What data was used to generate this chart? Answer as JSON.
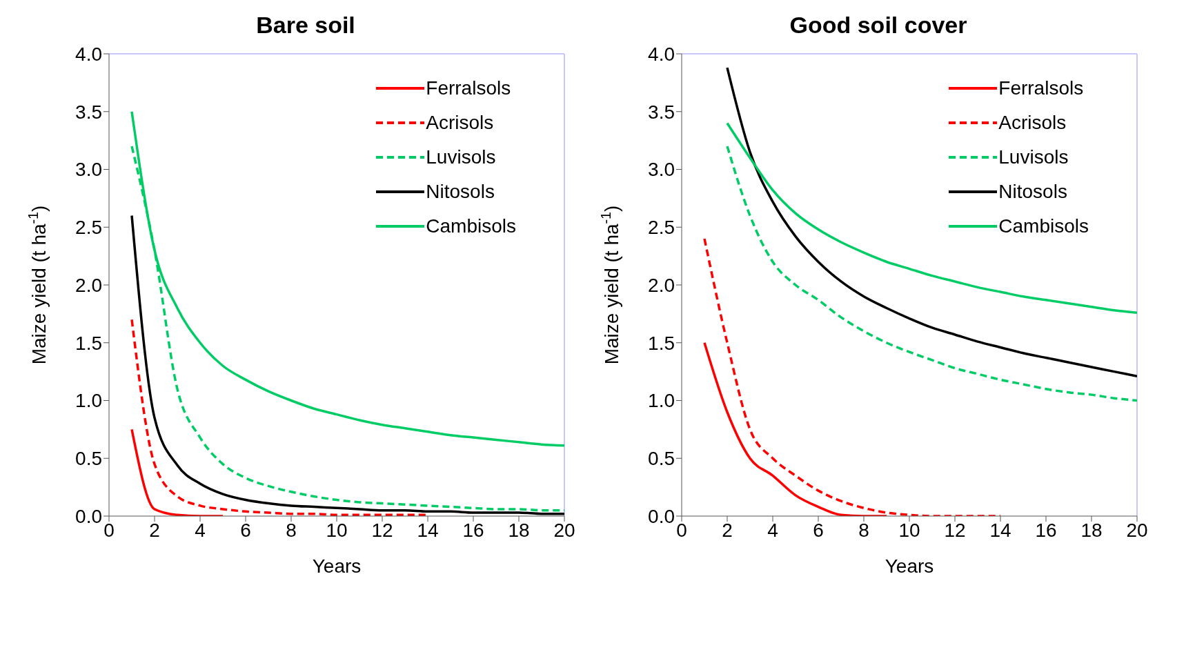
{
  "chart_data": [
    {
      "type": "line",
      "title": "Bare soil",
      "xlabel": "Years",
      "ylabel": "Maize yield (t ha$^{-1}$)",
      "xlim": [
        0,
        20
      ],
      "xticks": [
        0,
        2,
        4,
        6,
        8,
        10,
        12,
        14,
        16,
        18,
        20
      ],
      "ylim": [
        0,
        4
      ],
      "yticks": [
        {
          "value": 0,
          "label": "0.0"
        },
        {
          "value": 0.5,
          "label": "0.5"
        },
        {
          "value": 1,
          "label": "1.0"
        },
        {
          "value": 1.5,
          "label": "1.5"
        },
        {
          "value": 2,
          "label": "2.0"
        },
        {
          "value": 2.5,
          "label": "2.5"
        },
        {
          "value": 3,
          "label": "3.0"
        },
        {
          "value": 3.5,
          "label": "3.5"
        },
        {
          "value": 4,
          "label": "4.0"
        }
      ],
      "grid": false,
      "legend": "top right",
      "marker": "none",
      "series": [
        {
          "name": "Ferralsols",
          "color": "#ff0000",
          "line_style": "solid",
          "x": [
            1,
            2,
            3,
            4,
            5
          ],
          "values": [
            0.75,
            0.06,
            0.01,
            0,
            0
          ]
        },
        {
          "name": "Acrisols",
          "color": "#ff0000",
          "line_style": "dashed",
          "x": [
            1,
            2,
            3,
            4,
            5,
            6,
            7,
            8,
            9,
            10,
            11,
            12,
            13,
            14
          ],
          "values": [
            1.7,
            0.45,
            0.17,
            0.09,
            0.06,
            0.04,
            0.03,
            0.02,
            0.02,
            0.01,
            0.01,
            0.01,
            0.01,
            0.01
          ]
        },
        {
          "name": "Luvisols",
          "color": "#00cc66",
          "line_style": "dashed",
          "x": [
            1,
            2,
            3,
            4,
            5,
            6,
            7,
            8,
            9,
            10,
            11,
            12,
            13,
            14,
            15,
            16,
            17,
            18,
            19,
            20
          ],
          "values": [
            3.2,
            2.3,
            1.1,
            0.68,
            0.45,
            0.33,
            0.26,
            0.21,
            0.17,
            0.14,
            0.12,
            0.11,
            0.1,
            0.09,
            0.08,
            0.07,
            0.06,
            0.06,
            0.05,
            0.05
          ]
        },
        {
          "name": "Nitosols",
          "color": "#000000",
          "line_style": "solid",
          "x": [
            1,
            2,
            3,
            4,
            5,
            6,
            7,
            8,
            9,
            10,
            11,
            12,
            13,
            14,
            15,
            16,
            17,
            18,
            19,
            20
          ],
          "values": [
            2.6,
            0.85,
            0.44,
            0.28,
            0.19,
            0.14,
            0.11,
            0.09,
            0.08,
            0.07,
            0.06,
            0.05,
            0.05,
            0.04,
            0.04,
            0.03,
            0.03,
            0.03,
            0.02,
            0.02
          ]
        },
        {
          "name": "Cambisols",
          "color": "#00cc66",
          "line_style": "solid",
          "x": [
            1,
            2,
            3,
            4,
            5,
            6,
            7,
            8,
            9,
            10,
            11,
            12,
            13,
            14,
            15,
            16,
            17,
            18,
            19,
            20
          ],
          "values": [
            3.5,
            2.3,
            1.8,
            1.5,
            1.3,
            1.18,
            1.08,
            1.0,
            0.93,
            0.88,
            0.83,
            0.79,
            0.76,
            0.73,
            0.7,
            0.68,
            0.66,
            0.64,
            0.62,
            0.61
          ]
        }
      ]
    },
    {
      "type": "line",
      "title": "Good soil cover",
      "xlabel": "Years",
      "ylabel": "Maize yield (t ha$^{-1}$)",
      "xlim": [
        0,
        20
      ],
      "xticks": [
        0,
        2,
        4,
        6,
        8,
        10,
        12,
        14,
        16,
        18,
        20
      ],
      "ylim": [
        0,
        4
      ],
      "yticks": [
        {
          "value": 0,
          "label": "0.0"
        },
        {
          "value": 0.5,
          "label": "0.5"
        },
        {
          "value": 1,
          "label": "1.0"
        },
        {
          "value": 1.5,
          "label": "1.5"
        },
        {
          "value": 2,
          "label": "2.0"
        },
        {
          "value": 2.5,
          "label": "2.5"
        },
        {
          "value": 3,
          "label": "3.0"
        },
        {
          "value": 3.5,
          "label": "3.5"
        },
        {
          "value": 4,
          "label": "4.0"
        }
      ],
      "grid": false,
      "legend": "top right",
      "marker": "none",
      "series": [
        {
          "name": "Ferralsols",
          "color": "#ff0000",
          "line_style": "solid",
          "x": [
            1,
            2,
            3,
            4,
            5,
            6,
            7,
            8,
            9
          ],
          "values": [
            1.5,
            0.9,
            0.5,
            0.35,
            0.18,
            0.08,
            0.01,
            0,
            0
          ]
        },
        {
          "name": "Acrisols",
          "color": "#ff0000",
          "line_style": "dashed",
          "x": [
            1,
            2,
            3,
            4,
            5,
            6,
            7,
            8,
            9,
            10,
            11,
            12,
            13,
            14
          ],
          "values": [
            2.4,
            1.5,
            0.75,
            0.5,
            0.35,
            0.22,
            0.13,
            0.07,
            0.03,
            0.01,
            0,
            0,
            0,
            0
          ]
        },
        {
          "name": "Luvisols",
          "color": "#00cc66",
          "line_style": "dashed",
          "x": [
            2,
            3,
            4,
            5,
            6,
            7,
            8,
            9,
            10,
            11,
            12,
            13,
            14,
            15,
            16,
            17,
            18,
            19,
            20
          ],
          "values": [
            3.2,
            2.6,
            2.2,
            2.0,
            1.87,
            1.72,
            1.6,
            1.5,
            1.42,
            1.35,
            1.28,
            1.23,
            1.18,
            1.14,
            1.1,
            1.07,
            1.05,
            1.02,
            1.0
          ]
        },
        {
          "name": "Nitosols",
          "color": "#000000",
          "line_style": "solid",
          "x": [
            2,
            3,
            4,
            5,
            6,
            7,
            8,
            9,
            10,
            11,
            12,
            13,
            14,
            15,
            16,
            17,
            18,
            19,
            20
          ],
          "values": [
            3.88,
            3.15,
            2.72,
            2.42,
            2.2,
            2.03,
            1.9,
            1.8,
            1.71,
            1.63,
            1.57,
            1.51,
            1.46,
            1.41,
            1.37,
            1.33,
            1.29,
            1.25,
            1.21
          ]
        },
        {
          "name": "Cambisols",
          "color": "#00cc66",
          "line_style": "solid",
          "x": [
            2,
            3,
            4,
            5,
            6,
            7,
            8,
            9,
            10,
            11,
            12,
            13,
            14,
            15,
            16,
            17,
            18,
            19,
            20
          ],
          "values": [
            3.4,
            3.1,
            2.82,
            2.62,
            2.48,
            2.37,
            2.28,
            2.2,
            2.14,
            2.08,
            2.03,
            1.98,
            1.94,
            1.9,
            1.87,
            1.84,
            1.81,
            1.78,
            1.76
          ]
        }
      ]
    }
  ]
}
